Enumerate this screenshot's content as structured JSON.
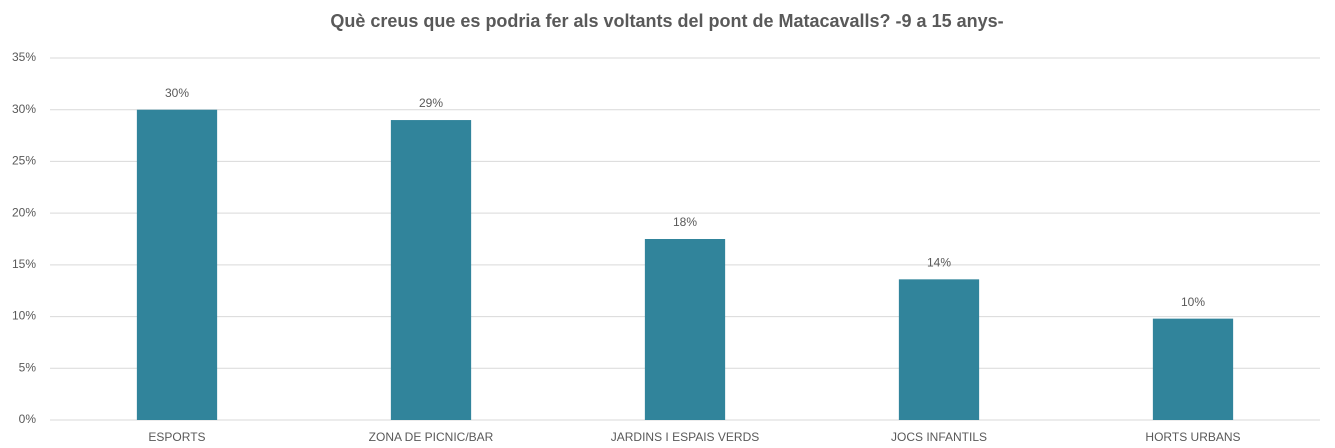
{
  "chart_data": {
    "type": "bar",
    "title": "Què creus que es podria fer als voltants del pont de Matacavalls? -9 a 15 anys-",
    "categories": [
      "ESPORTS",
      "ZONA DE PICNIC/BAR",
      "JARDINS I ESPAIS VERDS",
      "JOCS INFANTILS",
      "HORTS URBANS"
    ],
    "values": [
      30,
      29,
      17.5,
      13.6,
      9.8
    ],
    "value_labels": [
      "30%",
      "29%",
      "18%",
      "14%",
      "10%"
    ],
    "color": "#31849b",
    "ylim": [
      0,
      35
    ],
    "yticks": [
      {
        "value": 0,
        "label": "0%"
      },
      {
        "value": 5,
        "label": "5%"
      },
      {
        "value": 10,
        "label": "10%"
      },
      {
        "value": 15,
        "label": "15%"
      },
      {
        "value": 20,
        "label": "20%"
      },
      {
        "value": 25,
        "label": "25%"
      },
      {
        "value": 30,
        "label": "30%"
      },
      {
        "value": 35,
        "label": "35%"
      }
    ],
    "grid": true
  }
}
